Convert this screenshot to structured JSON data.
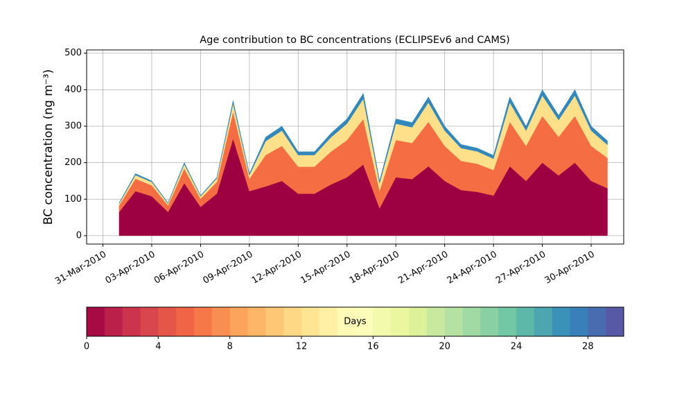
{
  "chart_data": {
    "type": "stacked_area",
    "title": "Age contribution to BC concentrations (ECLIPSEv6 and CAMS)",
    "y_label": "BC concentration (ng m⁻³)",
    "x": [
      "01-Apr-2010",
      "02-Apr-2010",
      "03-Apr-2010",
      "04-Apr-2010",
      "05-Apr-2010",
      "06-Apr-2010",
      "07-Apr-2010",
      "08-Apr-2010",
      "09-Apr-2010",
      "10-Apr-2010",
      "11-Apr-2010",
      "12-Apr-2010",
      "13-Apr-2010",
      "14-Apr-2010",
      "15-Apr-2010",
      "16-Apr-2010",
      "17-Apr-2010",
      "18-Apr-2010",
      "19-Apr-2010",
      "20-Apr-2010",
      "21-Apr-2010",
      "22-Apr-2010",
      "23-Apr-2010",
      "24-Apr-2010",
      "25-Apr-2010",
      "26-Apr-2010",
      "27-Apr-2010",
      "28-Apr-2010",
      "29-Apr-2010",
      "30-Apr-2010",
      "01-May-2010"
    ],
    "series": [
      {
        "color": "#9e0142",
        "values": [
          65,
          122,
          108,
          65,
          144,
          79,
          115,
          266,
          122,
          135,
          150,
          115,
          115,
          140,
          160,
          195,
          75,
          160,
          155,
          190,
          150,
          125,
          120,
          110,
          190,
          150,
          200,
          165,
          200,
          150,
          130
        ]
      },
      {
        "color": "#f46d43",
        "values": [
          18,
          34,
          30,
          18,
          40,
          22,
          32,
          74,
          34,
          86,
          96,
          74,
          74,
          90,
          102,
          125,
          48,
          102,
          99,
          122,
          96,
          80,
          77,
          70,
          122,
          96,
          128,
          106,
          128,
          96,
          83
        ]
      },
      {
        "color": "#fee08b",
        "values": [
          5,
          10,
          9,
          5,
          12,
          7,
          10,
          22,
          10,
          38,
          42,
          32,
          32,
          39,
          45,
          55,
          21,
          45,
          43,
          53,
          42,
          35,
          34,
          31,
          53,
          42,
          56,
          46,
          56,
          42,
          36
        ]
      },
      {
        "color": "#3288bd",
        "values": [
          2,
          4,
          3,
          2,
          4,
          2,
          3,
          8,
          4,
          11,
          12,
          9,
          9,
          11,
          13,
          15,
          6,
          13,
          13,
          15,
          12,
          10,
          9,
          9,
          15,
          12,
          16,
          13,
          16,
          12,
          11
        ]
      }
    ],
    "xlim": [
      "30-Mar-2010",
      "02-May-2010"
    ],
    "xticks": [
      "31-Mar-2010",
      "03-Apr-2010",
      "06-Apr-2010",
      "09-Apr-2010",
      "12-Apr-2010",
      "15-Apr-2010",
      "18-Apr-2010",
      "21-Apr-2010",
      "24-Apr-2010",
      "27-Apr-2010",
      "30-Apr-2010"
    ],
    "ylim": [
      -23,
      509
    ],
    "yticks": [
      0,
      100,
      200,
      300,
      400,
      500
    ],
    "grid": true,
    "colorbar": {
      "label": "Days",
      "cmap": [
        "#9e0142",
        "#d53e4f",
        "#f46d43",
        "#fdae61",
        "#fee08b",
        "#ffffbf",
        "#e6f598",
        "#abdda4",
        "#66c2a5",
        "#3288bd",
        "#5e4fa2"
      ],
      "lim": [
        0,
        30
      ],
      "ticks": [
        0,
        4,
        8,
        12,
        16,
        20,
        24,
        28
      ]
    }
  }
}
